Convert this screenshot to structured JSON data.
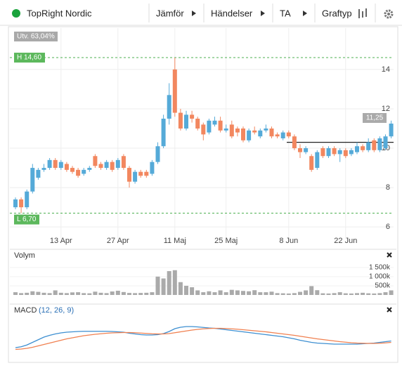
{
  "header": {
    "name": "TopRight Nordic",
    "buttons": [
      "Jämför",
      "Händelser",
      "TA",
      "Graftyp"
    ]
  },
  "chart_data": [
    {
      "type": "candlestick",
      "categories": [
        null,
        null,
        null,
        null,
        null,
        null,
        null,
        null,
        "13 Apr",
        null,
        null,
        null,
        null,
        null,
        null,
        null,
        null,
        null,
        "27 Apr",
        null,
        null,
        null,
        null,
        null,
        null,
        null,
        null,
        null,
        "11 Maj",
        null,
        null,
        null,
        null,
        null,
        null,
        null,
        null,
        "25 Maj",
        null,
        null,
        null,
        null,
        null,
        null,
        null,
        null,
        null,
        null,
        "8 Jun",
        null,
        null,
        null,
        null,
        null,
        null,
        null,
        null,
        null,
        "22 Jun",
        null,
        null,
        null,
        null,
        null,
        null,
        null,
        null
      ],
      "open": [
        7.0,
        7.4,
        7.0,
        7.8,
        8.5,
        8.9,
        9.0,
        9.4,
        9.0,
        9.2,
        9.0,
        8.9,
        8.7,
        8.9,
        9.6,
        9.2,
        9.0,
        9.3,
        9.0,
        9.6,
        9.0,
        8.3,
        8.8,
        8.8,
        8.7,
        9.3,
        10.1,
        11.5,
        14.0,
        11.8,
        11.0,
        11.7,
        11.5,
        11.2,
        10.8,
        11.2,
        11.4,
        10.9,
        11.2,
        11.0,
        11.0,
        10.4,
        10.9,
        10.6,
        10.9,
        11.0,
        10.7,
        10.5,
        10.8,
        10.6,
        10.0,
        9.8,
        9.6,
        9.0,
        10.0,
        9.6,
        10.0,
        9.7,
        9.9,
        9.7,
        9.8,
        10.1,
        9.9,
        10.4,
        9.9,
        10.0,
        10.6
      ],
      "high": [
        7.5,
        7.5,
        7.9,
        9.2,
        9.0,
        9.2,
        9.5,
        9.5,
        9.4,
        9.3,
        9.1,
        9.0,
        9.0,
        9.1,
        9.7,
        9.3,
        9.4,
        9.4,
        9.5,
        9.7,
        9.1,
        8.9,
        8.9,
        8.9,
        9.4,
        10.3,
        11.7,
        13.3,
        14.6,
        12.0,
        11.9,
        11.9,
        11.6,
        11.3,
        11.5,
        11.6,
        11.6,
        11.2,
        11.4,
        11.1,
        11.1,
        11.0,
        11.1,
        11.0,
        11.2,
        11.1,
        10.8,
        10.9,
        10.9,
        10.7,
        10.2,
        10.1,
        9.7,
        9.9,
        10.1,
        10.1,
        10.1,
        10.0,
        10.0,
        10.0,
        10.3,
        10.2,
        10.5,
        10.5,
        10.6,
        10.7,
        11.4
      ],
      "low": [
        6.9,
        6.7,
        6.9,
        7.7,
        8.4,
        8.8,
        8.9,
        8.9,
        8.9,
        8.8,
        8.7,
        8.5,
        8.6,
        8.8,
        9.0,
        8.9,
        8.9,
        8.8,
        8.9,
        8.9,
        8.0,
        8.2,
        8.5,
        8.5,
        8.6,
        9.2,
        10.0,
        11.2,
        11.6,
        10.9,
        10.9,
        11.3,
        10.9,
        10.4,
        10.7,
        11.1,
        10.8,
        10.8,
        10.5,
        10.6,
        10.3,
        10.3,
        10.7,
        10.5,
        10.8,
        10.5,
        10.5,
        10.4,
        10.5,
        9.9,
        9.5,
        9.7,
        8.8,
        8.9,
        9.5,
        9.5,
        9.6,
        9.3,
        9.5,
        9.6,
        9.7,
        9.8,
        9.8,
        9.8,
        9.8,
        9.9,
        10.5
      ],
      "close": [
        7.4,
        7.0,
        7.8,
        9.0,
        8.9,
        9.0,
        9.4,
        9.0,
        9.3,
        8.9,
        8.8,
        8.6,
        8.9,
        9.0,
        9.1,
        9.0,
        9.3,
        8.9,
        9.4,
        9.0,
        8.3,
        8.8,
        8.6,
        8.6,
        9.3,
        10.1,
        11.5,
        12.7,
        11.8,
        11.0,
        11.7,
        11.5,
        11.0,
        10.7,
        11.4,
        11.4,
        10.9,
        11.0,
        10.6,
        10.8,
        10.4,
        10.9,
        10.8,
        10.9,
        11.0,
        10.6,
        10.6,
        10.8,
        10.6,
        10.0,
        9.8,
        10.0,
        8.9,
        9.8,
        9.6,
        10.0,
        9.7,
        9.9,
        9.6,
        9.9,
        10.1,
        9.9,
        10.3,
        9.9,
        10.5,
        10.6,
        11.25
      ],
      "last_label": "11,25",
      "up_color": "#55aad8",
      "down_color": "#f2875f",
      "ylim": [
        5.4,
        16.1
      ],
      "yticks": [
        6,
        8,
        10,
        12,
        14
      ],
      "grid": true,
      "high_level": 14.6,
      "high_label": "H 14,60",
      "low_level": 6.7,
      "low_label": "L 6,70",
      "change_label": "Utv. 63,04%",
      "reference_level": 10.3
    },
    {
      "type": "bar",
      "title": "Volym",
      "color": "#aaaaaa",
      "values": [
        150000,
        100000,
        120000,
        200000,
        170000,
        120000,
        100000,
        250000,
        120000,
        100000,
        140000,
        150000,
        100000,
        90000,
        180000,
        120000,
        100000,
        190000,
        230000,
        160000,
        110000,
        100000,
        110000,
        120000,
        150000,
        1000000,
        900000,
        1300000,
        1350000,
        700000,
        500000,
        420000,
        250000,
        150000,
        200000,
        150000,
        250000,
        150000,
        280000,
        250000,
        220000,
        200000,
        260000,
        150000,
        150000,
        180000,
        100000,
        90000,
        80000,
        100000,
        170000,
        250000,
        480000,
        260000,
        90000,
        80000,
        100000,
        150000,
        90000,
        80000,
        100000,
        120000,
        90000,
        80000,
        100000,
        150000,
        250000
      ],
      "ylim": [
        0,
        1800000
      ],
      "yticks": [
        {
          "value": 500000,
          "label": "500k"
        },
        {
          "value": 1000000,
          "label": "1 000k"
        },
        {
          "value": 1500000,
          "label": "1 500k"
        }
      ]
    },
    {
      "type": "line",
      "title": "MACD",
      "subtitle": "(12, 26, 9)",
      "ylim": [
        -1,
        1
      ],
      "series": [
        {
          "color": "#3d8fd1",
          "values": [
            -0.6,
            -0.55,
            -0.45,
            -0.3,
            -0.15,
            0,
            0.1,
            0.18,
            0.24,
            0.28,
            0.3,
            0.32,
            0.33,
            0.33,
            0.33,
            0.33,
            0.33,
            0.32,
            0.3,
            0.28,
            0.22,
            0.18,
            0.14,
            0.12,
            0.12,
            0.14,
            0.2,
            0.32,
            0.48,
            0.56,
            0.6,
            0.6,
            0.58,
            0.55,
            0.52,
            0.5,
            0.46,
            0.42,
            0.38,
            0.34,
            0.3,
            0.26,
            0.22,
            0.18,
            0.14,
            0.1,
            0.06,
            0.02,
            -0.04,
            -0.1,
            -0.18,
            -0.24,
            -0.3,
            -0.34,
            -0.36,
            -0.38,
            -0.4,
            -0.4,
            -0.4,
            -0.4,
            -0.4,
            -0.38,
            -0.36,
            -0.34,
            -0.3,
            -0.26,
            -0.22
          ]
        },
        {
          "color": "#f08050",
          "values": [
            -0.7,
            -0.68,
            -0.64,
            -0.58,
            -0.5,
            -0.42,
            -0.34,
            -0.26,
            -0.18,
            -0.1,
            -0.04,
            0.02,
            0.08,
            0.12,
            0.16,
            0.19,
            0.22,
            0.24,
            0.25,
            0.26,
            0.26,
            0.25,
            0.23,
            0.21,
            0.19,
            0.18,
            0.18,
            0.2,
            0.25,
            0.3,
            0.35,
            0.4,
            0.44,
            0.47,
            0.49,
            0.5,
            0.5,
            0.49,
            0.47,
            0.45,
            0.42,
            0.39,
            0.36,
            0.33,
            0.3,
            0.26,
            0.22,
            0.18,
            0.14,
            0.1,
            0.05,
            0,
            -0.05,
            -0.1,
            -0.14,
            -0.18,
            -0.22,
            -0.26,
            -0.29,
            -0.32,
            -0.34,
            -0.35,
            -0.36,
            -0.36,
            -0.35,
            -0.33,
            -0.3
          ]
        }
      ]
    }
  ]
}
